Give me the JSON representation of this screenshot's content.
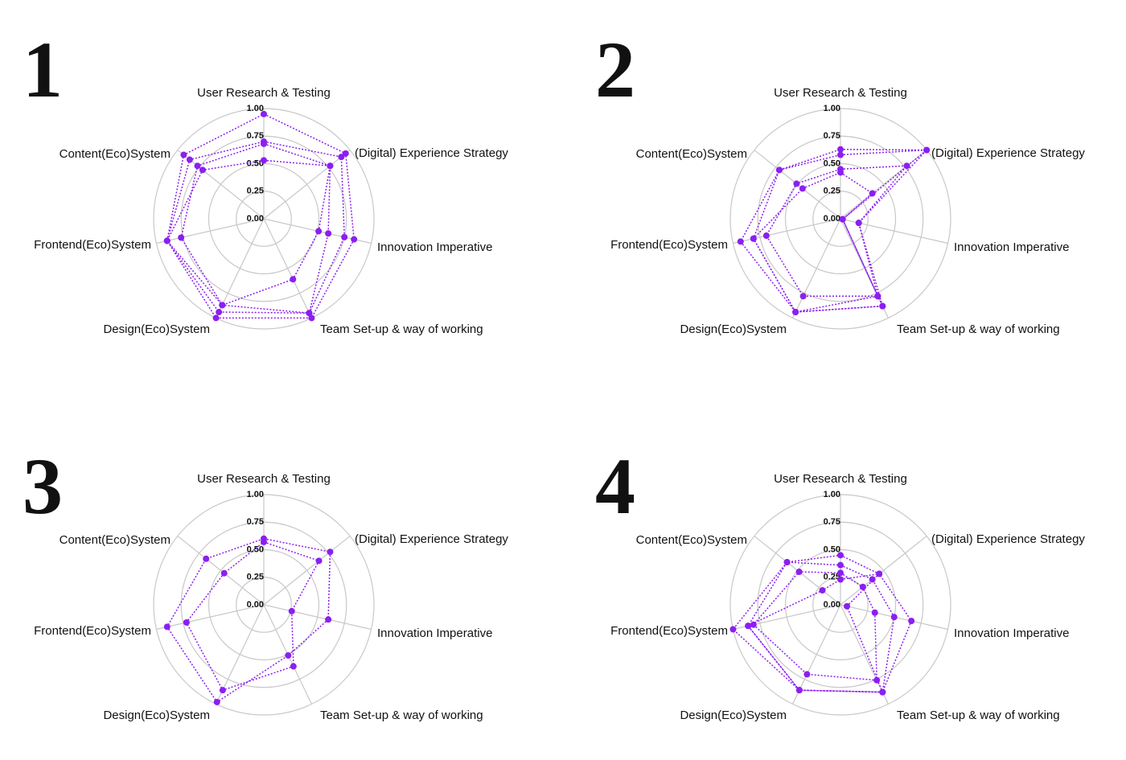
{
  "chart_data": [
    {
      "type": "radar",
      "panel_label": "1",
      "categories": [
        "User Research & Testing",
        "(Digital) Experience Strategy",
        "Innovation Imperative",
        "Team Set-up & way of working",
        "Design(Eco)System",
        "Frontend(Eco)System",
        "Content(Eco)System"
      ],
      "rlim": [
        0,
        1
      ],
      "rticks": [
        {
          "value": 0,
          "label": "0.00"
        },
        {
          "value": 0.25,
          "label": "0.25"
        },
        {
          "value": 0.5,
          "label": "0.50"
        },
        {
          "value": 0.75,
          "label": "0.75"
        },
        {
          "value": 1,
          "label": "1.00"
        }
      ],
      "series": [
        {
          "color": "#8b1ff0",
          "values": [
            0.95,
            0.95,
            0.84,
            1.0,
            1.0,
            0.9,
            0.93
          ]
        },
        {
          "color": "#8b1ff0",
          "values": [
            0.7,
            0.9,
            0.75,
            0.95,
            0.94,
            0.9,
            0.86
          ]
        },
        {
          "color": "#8b1ff0",
          "values": [
            0.68,
            0.77,
            0.51,
            0.61,
            0.87,
            0.77,
            0.77
          ]
        },
        {
          "color": "#8b1ff0",
          "values": [
            0.53,
            0.77,
            0.6,
            0.95,
            0.87,
            0.9,
            0.71
          ]
        }
      ]
    },
    {
      "type": "radar",
      "panel_label": "2",
      "categories": [
        "User Research & Testing",
        "(Digital) Experience Strategy",
        "Innovation Imperative",
        "Team Set-up & way of working",
        "Design(Eco)System",
        "Frontend(Eco)System",
        "Content(Eco)System"
      ],
      "rlim": [
        0,
        1
      ],
      "rticks": [
        {
          "value": 0,
          "label": "0.00"
        },
        {
          "value": 0.25,
          "label": "0.25"
        },
        {
          "value": 0.5,
          "label": "0.50"
        },
        {
          "value": 0.75,
          "label": "0.75"
        },
        {
          "value": 1,
          "label": "1.00"
        }
      ],
      "series": [
        {
          "color": "#8b1ff0",
          "values": [
            0.63,
            1.0,
            0.17,
            0.88,
            0.94,
            0.93,
            0.71
          ]
        },
        {
          "color": "#8b1ff0",
          "values": [
            0.58,
            1.0,
            0.02,
            0.78,
            0.94,
            0.81,
            0.71
          ]
        },
        {
          "color": "#8b1ff0",
          "values": [
            0.45,
            0.77,
            0.17,
            0.78,
            0.78,
            0.69,
            0.51
          ]
        },
        {
          "color": "#8b1ff0",
          "values": [
            0.42,
            0.37,
            0.02,
            0.88,
            0.94,
            0.81,
            0.44
          ]
        }
      ]
    },
    {
      "type": "radar",
      "panel_label": "3",
      "categories": [
        "User Research & Testing",
        "(Digital) Experience Strategy",
        "Innovation Imperative",
        "Team Set-up & way of working",
        "Design(Eco)System",
        "Frontend(Eco)System",
        "Content(Eco)System"
      ],
      "rlim": [
        0,
        1
      ],
      "rticks": [
        {
          "value": 0,
          "label": "0.00"
        },
        {
          "value": 0.25,
          "label": "0.25"
        },
        {
          "value": 0.5,
          "label": "0.50"
        },
        {
          "value": 0.75,
          "label": "0.75"
        },
        {
          "value": 1,
          "label": "1.00"
        }
      ],
      "series": [
        {
          "color": "#8b1ff0",
          "values": [
            0.6,
            0.77,
            0.6,
            0.51,
            0.98,
            0.9,
            0.67
          ]
        },
        {
          "color": "#8b1ff0",
          "values": [
            0.57,
            0.64,
            0.26,
            0.62,
            0.86,
            0.72,
            0.46
          ]
        }
      ]
    },
    {
      "type": "radar",
      "panel_label": "4",
      "categories": [
        "User Research & Testing",
        "(Digital) Experience Strategy",
        "Innovation Imperative",
        "Team Set-up & way of working",
        "Design(Eco)System",
        "Frontend(Eco)System",
        "Content(Eco)System"
      ],
      "rlim": [
        0,
        1
      ],
      "rticks": [
        {
          "value": 0,
          "label": "0.00"
        },
        {
          "value": 0.25,
          "label": "0.25"
        },
        {
          "value": 0.5,
          "label": "0.50"
        },
        {
          "value": 0.75,
          "label": "0.75"
        },
        {
          "value": 1,
          "label": "1.00"
        }
      ],
      "series": [
        {
          "color": "#8b1ff0",
          "values": [
            0.45,
            0.45,
            0.66,
            0.88,
            0.86,
            1.0,
            0.62
          ]
        },
        {
          "color": "#8b1ff0",
          "values": [
            0.36,
            0.37,
            0.5,
            0.88,
            0.86,
            0.86,
            0.62
          ]
        },
        {
          "color": "#8b1ff0",
          "values": [
            0.29,
            0.26,
            0.32,
            0.76,
            0.7,
            0.81,
            0.48
          ]
        },
        {
          "color": "#8b1ff0",
          "values": [
            0.23,
            0.45,
            0.06,
            0.88,
            0.86,
            0.86,
            0.21
          ]
        }
      ]
    }
  ]
}
